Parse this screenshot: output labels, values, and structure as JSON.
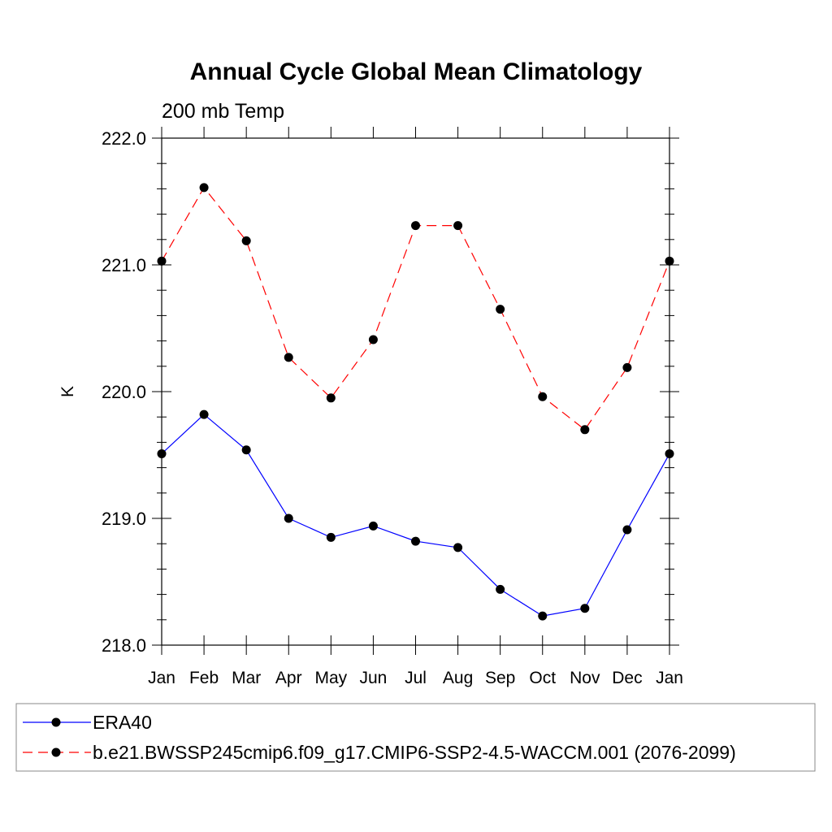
{
  "chart_data": {
    "type": "line",
    "title": "Annual Cycle Global Mean Climatology",
    "subtitle": "200 mb Temp",
    "xlabel": "",
    "ylabel": "K",
    "categories": [
      "Jan",
      "Feb",
      "Mar",
      "Apr",
      "May",
      "Jun",
      "Jul",
      "Aug",
      "Sep",
      "Oct",
      "Nov",
      "Dec",
      "Jan"
    ],
    "ylim": [
      218.0,
      222.0
    ],
    "yticks": [
      "218.0",
      "219.0",
      "220.0",
      "221.0",
      "222.0"
    ],
    "grid": false,
    "legend_position": "bottom",
    "series": [
      {
        "name": "ERA40",
        "color": "#0000ff",
        "dash": "solid",
        "marker": "circle",
        "values": [
          219.51,
          219.82,
          219.54,
          219.0,
          218.85,
          218.94,
          218.82,
          218.77,
          218.44,
          218.23,
          218.29,
          218.91,
          219.51
        ]
      },
      {
        "name": "b.e21.BWSSP245cmip6.f09_g17.CMIP6-SSP2-4.5-WACCM.001 (2076-2099)",
        "color": "#ff0000",
        "dash": "dashed",
        "marker": "circle",
        "values": [
          221.03,
          221.61,
          221.19,
          220.27,
          219.95,
          220.41,
          221.31,
          221.31,
          220.65,
          219.96,
          219.7,
          220.19,
          221.03
        ]
      }
    ]
  }
}
